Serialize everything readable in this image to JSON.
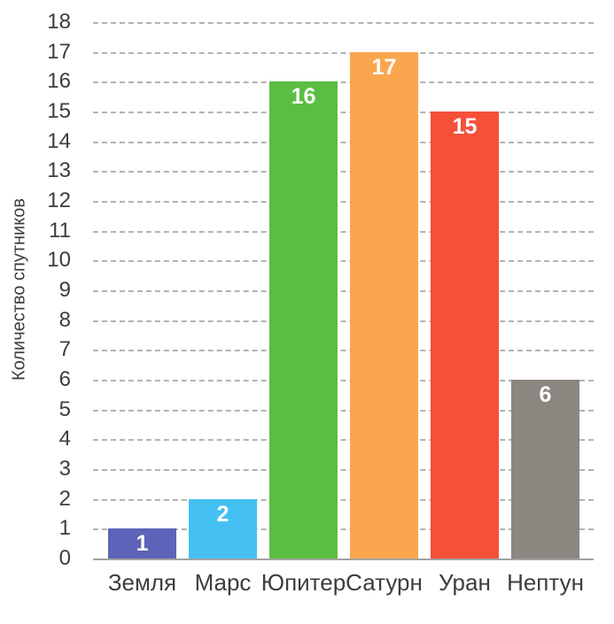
{
  "chart_data": {
    "type": "bar",
    "title": "",
    "xlabel": "",
    "ylabel": "Количество спутников",
    "categories": [
      "Земля",
      "Марс",
      "Юпитер",
      "Сатурн",
      "Уран",
      "Нептун"
    ],
    "values": [
      1,
      2,
      16,
      17,
      15,
      6
    ],
    "bar_colors": [
      "#5C63B8",
      "#44C1F2",
      "#5BBD41",
      "#FAA64F",
      "#F4503A",
      "#8A8680"
    ],
    "ylim": [
      0,
      18
    ],
    "ytick_step": 1,
    "yticks": [
      0,
      1,
      2,
      3,
      4,
      5,
      6,
      7,
      8,
      9,
      10,
      11,
      12,
      13,
      14,
      15,
      16,
      17,
      18
    ],
    "grid": "horizontal-dashed",
    "gridline_color": "#b3b3b3",
    "baseline_color": "#a3a3a3",
    "value_label_style": "inside-top-white",
    "legend": "none"
  }
}
